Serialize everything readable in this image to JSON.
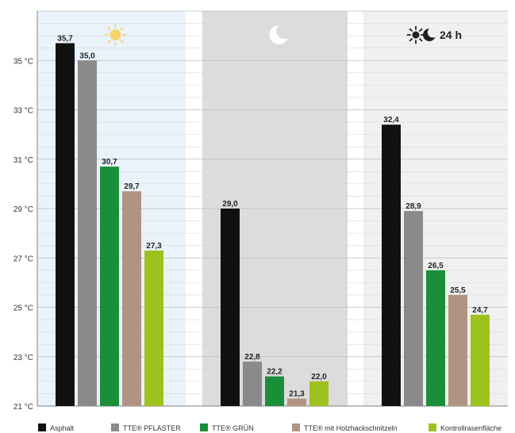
{
  "chart_data": {
    "type": "bar",
    "unit": "°C",
    "ylim": [
      21,
      37
    ],
    "y_ticks": [
      "21 °C",
      "23 °C",
      "25 °C",
      "27 °C",
      "29 °C",
      "31 °C",
      "33 °C",
      "35 °C"
    ],
    "grid": true,
    "legend_placement": "bottom",
    "panels": [
      {
        "header_icon": "sun-icon",
        "header_text": "",
        "background": "#eaf2fc"
      },
      {
        "header_icon": "moon-icon",
        "header_text": "",
        "background": "#dcdcdc"
      },
      {
        "header_icon": "sun-moon-icon",
        "header_text": "24 h",
        "background": "#f0f0f0"
      }
    ],
    "series": [
      {
        "name": "Asphalt",
        "color": "#111111",
        "values": [
          35.7,
          29.0,
          32.4
        ],
        "labels": [
          "35,7",
          "29,0",
          "32,4"
        ]
      },
      {
        "name": "TTE® PFLASTER",
        "color": "#8a8a8a",
        "values": [
          35.0,
          22.8,
          28.9
        ],
        "labels": [
          "35,0",
          "22,8",
          "28,9"
        ]
      },
      {
        "name": "TTE® GRÜN",
        "color": "#1a8f3a",
        "values": [
          30.7,
          22.2,
          26.5
        ],
        "labels": [
          "30,7",
          "22,2",
          "26,5"
        ]
      },
      {
        "name": "TTE® mit Holzhackschnitzeln",
        "color": "#b09383",
        "values": [
          29.7,
          21.3,
          25.5
        ],
        "labels": [
          "29,7",
          "21,3",
          "25,5"
        ]
      },
      {
        "name": "Kontrollrasenfläche",
        "color": "#9dc21d",
        "values": [
          27.3,
          22.0,
          24.7
        ],
        "labels": [
          "27,3",
          "22,0",
          "24,7"
        ]
      }
    ]
  }
}
